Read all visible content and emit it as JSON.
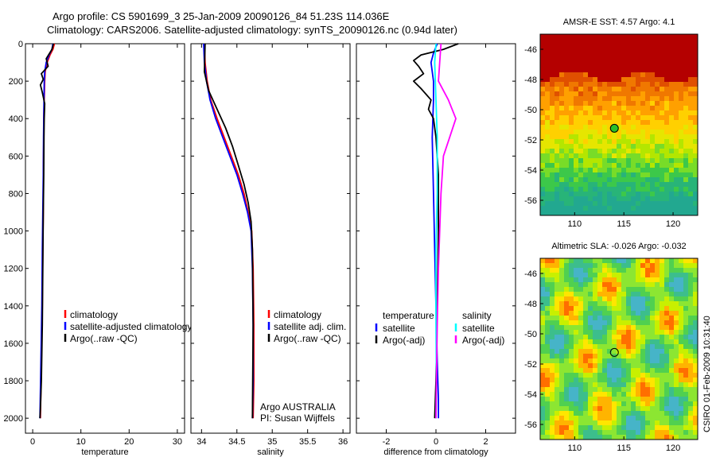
{
  "figure": {
    "title_line1": "Argo profile: CS 5901699_3 25-Jan-2009 20090126_84 51.23S 114.036E",
    "title_line2": "Climatology: CARS2006. Satellite-adjusted climatology: synTS_20090126.nc (0.94d later)",
    "credit": "CSIRO 01-Feb-2009 10:31:40"
  },
  "colors": {
    "climatology": "#ff0000",
    "satellite": "#0000ff",
    "argo": "#000000",
    "salinity_satellite": "#00ffff",
    "salinity_argo": "#ff00ff"
  },
  "chart_data": [
    {
      "type": "line",
      "xlabel": "temperature",
      "ylabel": "",
      "xlim": [
        -1.5,
        31.5
      ],
      "ylim": [
        2080,
        0
      ],
      "xticks": [
        0,
        10,
        20,
        30
      ],
      "yticks": [
        0,
        200,
        400,
        600,
        800,
        1000,
        1200,
        1400,
        1600,
        1800,
        2000
      ],
      "legend": {
        "placement": "center-right",
        "entries": [
          "climatology",
          "satellite-adjusted climatology",
          "Argo(..raw -QC)"
        ]
      },
      "series": [
        {
          "name": "climatology",
          "color": "#ff0000",
          "x": [
            4.5,
            4.2,
            3.6,
            3.0,
            2.6,
            2.5,
            2.4,
            2.3,
            2.3,
            2.2,
            2.2,
            2.1,
            2.0,
            1.8,
            1.6
          ],
          "y": [
            0,
            30,
            60,
            100,
            150,
            200,
            300,
            400,
            500,
            700,
            900,
            1100,
            1400,
            1700,
            2000
          ]
        },
        {
          "name": "satellite-adjusted climatology",
          "color": "#0000ff",
          "x": [
            4.2,
            4.0,
            3.4,
            2.8,
            2.5,
            2.4,
            2.35,
            2.3,
            2.25,
            2.2,
            2.1,
            2.0,
            1.9,
            1.7,
            1.5
          ],
          "y": [
            0,
            30,
            60,
            100,
            150,
            200,
            300,
            400,
            500,
            700,
            900,
            1100,
            1400,
            1700,
            2000
          ]
        },
        {
          "name": "Argo(..raw -QC)",
          "color": "#000000",
          "x": [
            4.3,
            4.0,
            2.8,
            3.2,
            1.8,
            2.2,
            1.6,
            2.0,
            2.5,
            2.4,
            2.35,
            2.3,
            2.2,
            2.1,
            2.0,
            1.8,
            1.6,
            1.5
          ],
          "y": [
            0,
            30,
            80,
            120,
            160,
            190,
            220,
            260,
            320,
            400,
            500,
            700,
            900,
            1200,
            1500,
            1800,
            1950,
            2000
          ]
        }
      ]
    },
    {
      "type": "line",
      "xlabel": "salinity",
      "ylabel": "",
      "xlim": [
        33.85,
        36.1
      ],
      "ylim": [
        2080,
        0
      ],
      "xticks": [
        34,
        34.5,
        35,
        35.5,
        36
      ],
      "yticks": [],
      "legend": {
        "placement": "center-right",
        "entries": [
          "climatology",
          "satellite adj. clim.",
          "Argo(..raw -QC)"
        ]
      },
      "annotations": [
        "Argo AUSTRALIA",
        "PI: Susan Wijffels"
      ],
      "series": [
        {
          "name": "climatology",
          "color": "#ff0000",
          "x": [
            34.04,
            34.05,
            34.08,
            34.13,
            34.22,
            34.32,
            34.42,
            34.52,
            34.6,
            34.66,
            34.71,
            34.73,
            34.74,
            34.74,
            34.73
          ],
          "y": [
            0,
            100,
            200,
            300,
            400,
            500,
            600,
            700,
            800,
            900,
            1000,
            1200,
            1500,
            1800,
            2000
          ]
        },
        {
          "name": "satellite adj. clim.",
          "color": "#0000ff",
          "x": [
            34.03,
            34.04,
            34.07,
            34.12,
            34.2,
            34.3,
            34.4,
            34.5,
            34.58,
            34.65,
            34.7,
            34.72,
            34.73,
            34.73,
            34.72
          ],
          "y": [
            0,
            100,
            200,
            300,
            400,
            500,
            600,
            700,
            800,
            900,
            1000,
            1200,
            1500,
            1800,
            2000
          ]
        },
        {
          "name": "Argo(..raw -QC)",
          "color": "#000000",
          "x": [
            34.05,
            34.04,
            34.1,
            34.22,
            34.34,
            34.44,
            34.52,
            34.6,
            34.66,
            34.7,
            34.72,
            34.73,
            34.72
          ],
          "y": [
            0,
            150,
            250,
            350,
            450,
            550,
            650,
            750,
            850,
            950,
            1100,
            1500,
            2000
          ]
        }
      ]
    },
    {
      "type": "line",
      "xlabel": "difference from climatology",
      "ylabel": "",
      "xlim": [
        -3.2,
        3.2
      ],
      "ylim": [
        2080,
        0
      ],
      "xticks": [
        -2,
        0,
        2
      ],
      "yticks": [],
      "legend": {
        "placement": "center",
        "groups": [
          {
            "header": "temperature",
            "entries": [
              "satellite",
              "Argo(-adj)"
            ]
          },
          {
            "header": "salinity",
            "entries": [
              "satellite",
              "Argo(-adj)"
            ]
          }
        ]
      },
      "series": [
        {
          "name": "temperature satellite",
          "color": "#0000ff",
          "x": [
            0.05,
            -0.1,
            -0.2,
            -0.1,
            -0.1,
            -0.15,
            -0.1,
            -0.05,
            0.0,
            0.05,
            0.1,
            0.1
          ],
          "y": [
            0,
            50,
            100,
            200,
            300,
            500,
            800,
            1100,
            1400,
            1700,
            1900,
            2000
          ]
        },
        {
          "name": "temperature Argo(-adj)",
          "color": "#000000",
          "x": [
            0.9,
            0.3,
            -0.6,
            -0.9,
            -0.7,
            -0.5,
            -0.9,
            -0.6,
            -0.2,
            -0.3,
            -0.1,
            0.0,
            0.1,
            0.1,
            0.05,
            0.0,
            -0.05
          ],
          "y": [
            0,
            30,
            60,
            90,
            120,
            160,
            200,
            240,
            300,
            350,
            400,
            500,
            700,
            1000,
            1400,
            1800,
            2000
          ]
        },
        {
          "name": "salinity satellite",
          "color": "#00ffff",
          "x": [
            0.0,
            -0.05,
            0.0,
            0.05,
            0.05,
            0.0,
            0.0,
            0.02,
            0.0
          ],
          "y": [
            0,
            100,
            300,
            500,
            800,
            1100,
            1500,
            1800,
            2000
          ]
        },
        {
          "name": "salinity Argo(-adj)",
          "color": "#ff00ff",
          "x": [
            0.2,
            0.1,
            0.5,
            0.8,
            0.55,
            0.3,
            0.2,
            0.15,
            0.1,
            0.05,
            0.02,
            0.0
          ],
          "y": [
            0,
            200,
            300,
            400,
            500,
            600,
            800,
            1000,
            1200,
            1500,
            1800,
            2000
          ]
        }
      ]
    },
    {
      "type": "heatmap",
      "title": "AMSR-E SST: 4.57 Argo: 4.1",
      "xlim": [
        106.5,
        122.5
      ],
      "ylim": [
        -57,
        -45
      ],
      "xticks": [
        110,
        115,
        120
      ],
      "yticks": [
        -46,
        -48,
        -50,
        -52,
        -54,
        -56
      ],
      "marker": {
        "x": 114.036,
        "y": -51.23
      }
    },
    {
      "type": "heatmap",
      "title": "Altimetric SLA: -0.026 Argo: -0.032",
      "xlim": [
        106.5,
        122.5
      ],
      "ylim": [
        -57,
        -45
      ],
      "xticks": [
        110,
        115,
        120
      ],
      "yticks": [
        -46,
        -48,
        -50,
        -52,
        -54,
        -56
      ],
      "marker": {
        "x": 114.036,
        "y": -51.23
      }
    }
  ]
}
